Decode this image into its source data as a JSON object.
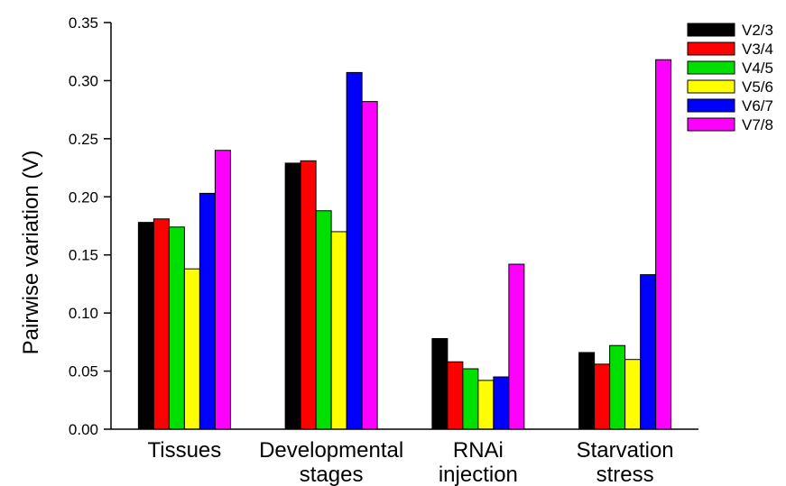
{
  "chart_data": {
    "type": "bar",
    "title": "",
    "xlabel": "",
    "ylabel": "Pairwise variation (V)",
    "ylim": [
      0,
      0.35
    ],
    "yticks": [
      "0.00",
      "0.05",
      "0.10",
      "0.15",
      "0.20",
      "0.25",
      "0.30",
      "0.35"
    ],
    "categories": [
      [
        "Tissues"
      ],
      [
        "Developmental",
        "stages"
      ],
      [
        "RNAi",
        "injection"
      ],
      [
        "Starvation",
        "stress"
      ]
    ],
    "series": [
      {
        "name": "V2/3",
        "color": "#000000",
        "values": [
          0.178,
          0.229,
          0.078,
          0.066
        ]
      },
      {
        "name": "V3/4",
        "color": "#ff0000",
        "values": [
          0.181,
          0.231,
          0.058,
          0.056
        ]
      },
      {
        "name": "V4/5",
        "color": "#00e000",
        "values": [
          0.174,
          0.188,
          0.052,
          0.072
        ]
      },
      {
        "name": "V5/6",
        "color": "#ffff00",
        "values": [
          0.138,
          0.17,
          0.042,
          0.06
        ]
      },
      {
        "name": "V6/7",
        "color": "#0000ff",
        "values": [
          0.203,
          0.307,
          0.045,
          0.133
        ]
      },
      {
        "name": "V7/8",
        "color": "#ff00ff",
        "values": [
          0.24,
          0.282,
          0.142,
          0.318
        ]
      }
    ],
    "grid": false,
    "legend_position": "top-right"
  }
}
